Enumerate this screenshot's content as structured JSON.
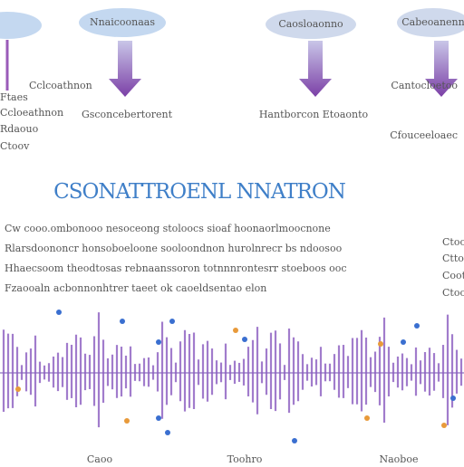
{
  "nodes": [
    {
      "label": "Nnaicoonaas"
    },
    {
      "label": "Caosloaonno"
    },
    {
      "label": "Cabeoanenn"
    }
  ],
  "left_labels": [
    "Ccloeathnon",
    "Rdaouo",
    "Ctoov",
    "Ftaes"
  ],
  "center_labels": [
    "Gsconcebertorent",
    "Hantborcon Etoaonto"
  ],
  "right_labels": [
    "Cantocloetoo",
    "Cfouceeloaec"
  ],
  "small_left_label": "Cclcoathnon",
  "title": "CSONATTROENL NNATRON",
  "paragraph": [
    "Cw cooo.ombonooo nesoceong stoloocs sioaf hoonaorlmoocnone",
    "Rlarsdoononcr honsoboeloone sooloondnon hurolnrecr bs ndoosoo",
    "Hhaecsoom theodtosas rebnaanssoron totnnnrontesrr stoeboos ooc",
    "Fzaooaln acbonnonhtrer taeet ok caoeldsentao elon"
  ],
  "side_labels": [
    "Ctoo",
    "Cttoo",
    "Coot",
    "Ctoo"
  ],
  "bottom_labels": [
    "Caoo",
    "Toohro",
    "Naoboe"
  ]
}
